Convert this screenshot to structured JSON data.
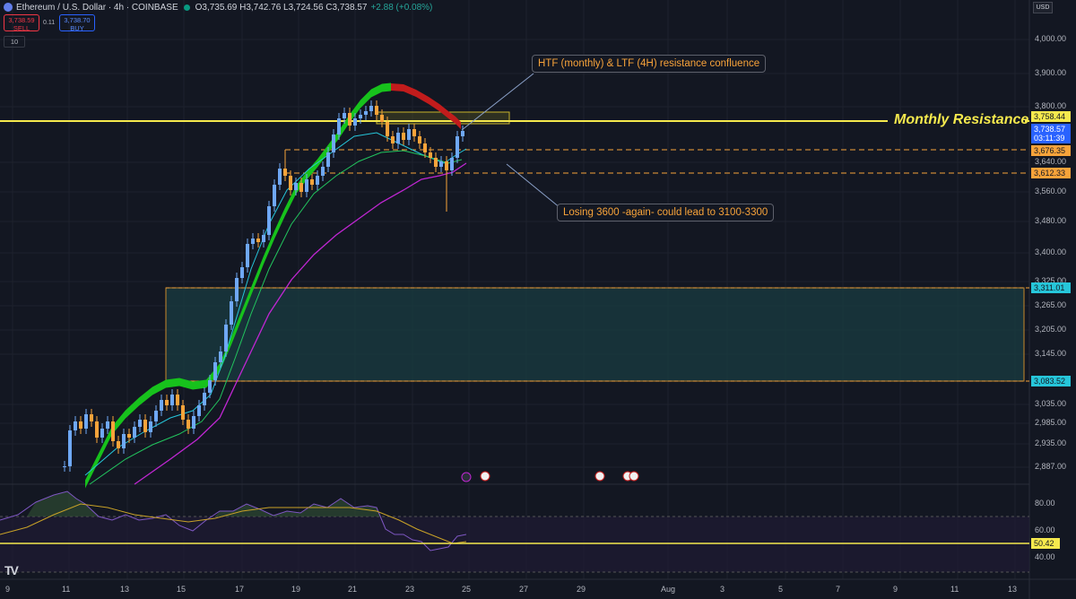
{
  "header": {
    "symbol": "Ethereum / U.S. Dollar · 4h · COINBASE",
    "ohlc": "O3,735.69 H3,742.76 L3,724.56 C3,738.57",
    "change": "+2.88 (+0.08%)",
    "sell_price": "3,738.59",
    "sell_label": "SELL",
    "buy_price": "3,738.70",
    "buy_label": "BUY",
    "spread": "0.11",
    "volume_badge": "10"
  },
  "currency": "USD",
  "annotations": {
    "confluence": "HTF (monthly) & LTF (4H) resistance confluence",
    "losing": "Losing 3600 -again- could lead to 3100-3300",
    "monthly": "Monthly Resistance"
  },
  "price_axis": [
    "4,000.00",
    "3,900.00",
    "3,800.00",
    "3,640.00",
    "3,560.00",
    "3,480.00",
    "3,400.00",
    "3,325.00",
    "3,265.00",
    "3,205.00",
    "3,145.00",
    "3,035.00",
    "2,985.00",
    "2,935.00",
    "2,887.00"
  ],
  "price_labels": {
    "monthly_res": "3,758.44",
    "last_price": "3,738.57",
    "countdown": "03:11:39",
    "level_a": "3,676.35",
    "level_b": "3,612.33",
    "zone_top": "3,311.01",
    "zone_bottom": "3,083.52"
  },
  "rsi_axis": [
    "80.00",
    "60.00",
    "40.00"
  ],
  "rsi_value": "50.42",
  "date_axis": [
    "9",
    "11",
    "13",
    "15",
    "17",
    "19",
    "21",
    "23",
    "25",
    "27",
    "29",
    "Aug",
    "3",
    "5",
    "7",
    "9",
    "11",
    "13"
  ],
  "colors": {
    "background": "#131722",
    "bull_candle": "#6fa8f5",
    "bear_candle": "#f7a33a",
    "resistance": "#f5e94d",
    "zone": "#1a3c42",
    "ribbon_bull": "#17c21c",
    "ribbon_bear": "#c21c1c",
    "rsi_line": "#7e57c2"
  }
}
